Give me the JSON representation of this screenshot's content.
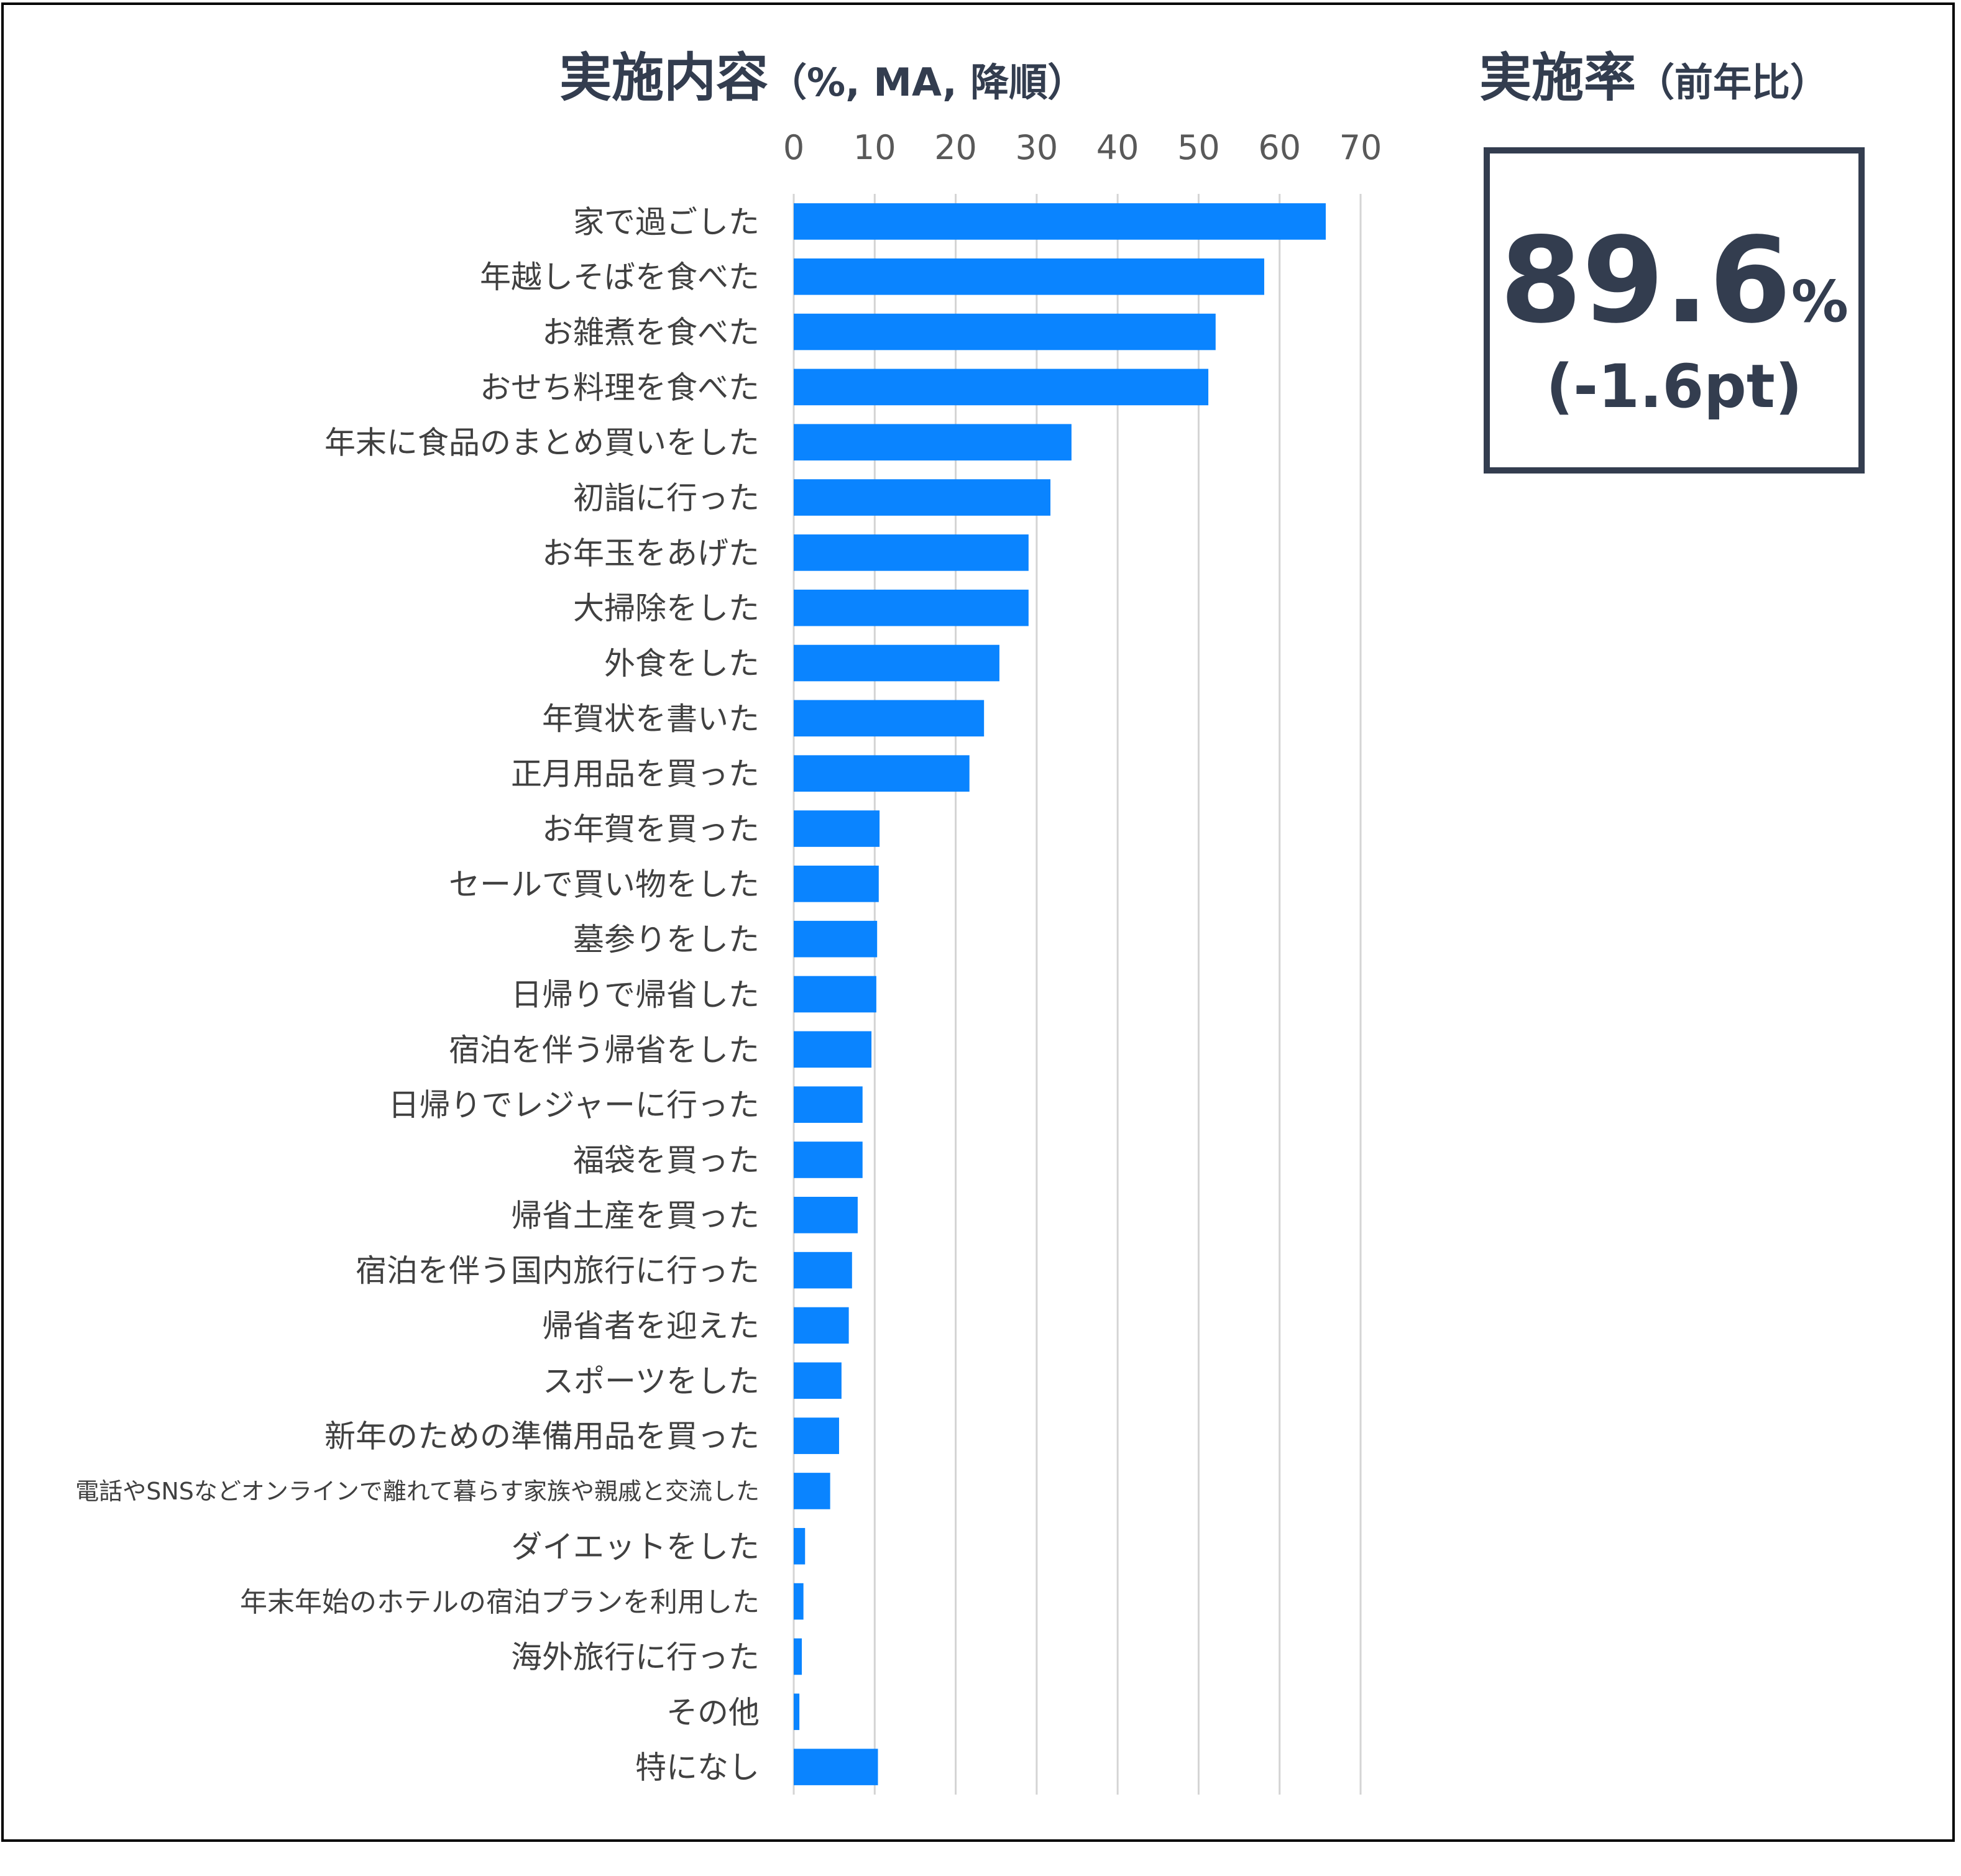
{
  "header": {
    "chart_title_main": "実施内容",
    "chart_title_sub": "（%, MA, 降順）",
    "rate_title_main": "実施率",
    "rate_title_sub": "（前年比）"
  },
  "rate_box": {
    "value": "89.6",
    "unit": "%",
    "delta": "(-1.6pt)"
  },
  "chart_data": {
    "type": "bar",
    "orientation": "horizontal",
    "title": "実施内容（%, MA, 降順）",
    "xlim": [
      0,
      70
    ],
    "xticks": [
      0,
      10,
      20,
      30,
      40,
      50,
      60,
      70
    ],
    "x_axis_position": "top",
    "grid": true,
    "bar_color": "#0a84ff",
    "categories": [
      "家で過ごした",
      "年越しそばを食べた",
      "お雑煮を食べた",
      "おせち料理を食べた",
      "年末に食品のまとめ買いをした",
      "初詣に行った",
      "お年玉をあげた",
      "大掃除をした",
      "外食をした",
      "年賀状を書いた",
      "正月用品を買った",
      "お年賀を買った",
      "セールで買い物をした",
      "墓参りをした",
      "日帰りで帰省した",
      "宿泊を伴う帰省をした",
      "日帰りでレジャーに行った",
      "福袋を買った",
      "帰省土産を買った",
      "宿泊を伴う国内旅行に行った",
      "帰省者を迎えた",
      "スポーツをした",
      "新年のための準備用品を買った",
      "電話やSNSなどオンラインで離れて暮らす家族や親戚と交流した",
      "ダイエットをした",
      "年末年始のホテルの宿泊プランを利用した",
      "海外旅行に行った",
      "その他",
      "特になし"
    ],
    "values": [
      65.7,
      58.1,
      52.1,
      51.2,
      34.3,
      31.7,
      29.0,
      29.0,
      25.4,
      23.5,
      21.7,
      10.6,
      10.5,
      10.3,
      10.2,
      9.6,
      8.5,
      8.5,
      7.9,
      7.2,
      6.8,
      5.9,
      5.6,
      4.5,
      1.4,
      1.2,
      1.0,
      0.7,
      10.4
    ]
  }
}
